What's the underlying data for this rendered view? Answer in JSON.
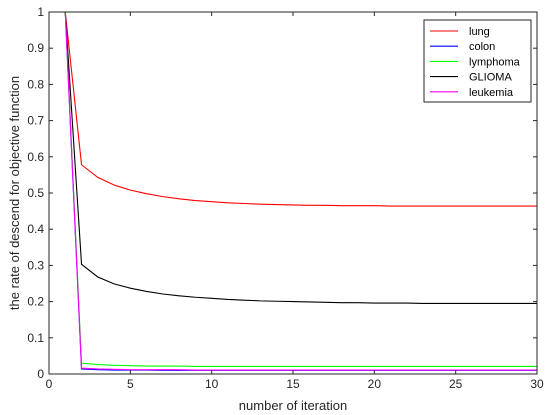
{
  "chart_data": {
    "type": "line",
    "xlabel": "number of iteration",
    "ylabel": "the rate of descend for objective function",
    "xlim": [
      0,
      30
    ],
    "ylim": [
      0,
      1
    ],
    "xticks": [
      0,
      5,
      10,
      15,
      20,
      25,
      30
    ],
    "xtick_labels": [
      "0",
      "5",
      "10",
      "15",
      "20",
      "25",
      "30"
    ],
    "yticks": [
      0,
      0.1,
      0.2,
      0.3,
      0.4,
      0.5,
      0.6,
      0.7,
      0.8,
      0.9,
      1
    ],
    "ytick_labels": [
      "0",
      "0.1",
      "0.2",
      "0.3",
      "0.4",
      "0.5",
      "0.6",
      "0.7",
      "0.8",
      "0.9",
      "1"
    ],
    "grid": false,
    "legend_position": "top-right",
    "x": [
      1,
      2,
      3,
      4,
      5,
      6,
      7,
      8,
      9,
      10,
      11,
      12,
      13,
      14,
      15,
      16,
      17,
      18,
      19,
      20,
      21,
      22,
      23,
      24,
      25,
      26,
      27,
      28,
      29,
      30
    ],
    "series": [
      {
        "name": "lung",
        "color": "#ff0000",
        "values": [
          1,
          0.578,
          0.543,
          0.522,
          0.508,
          0.498,
          0.49,
          0.484,
          0.479,
          0.476,
          0.473,
          0.471,
          0.469,
          0.468,
          0.467,
          0.466,
          0.466,
          0.465,
          0.465,
          0.465,
          0.464,
          0.464,
          0.464,
          0.464,
          0.464,
          0.464,
          0.464,
          0.464,
          0.464,
          0.464
        ]
      },
      {
        "name": "colon",
        "color": "#0000ff",
        "values": [
          1,
          0.014,
          0.012,
          0.011,
          0.011,
          0.011,
          0.01,
          0.01,
          0.01,
          0.01,
          0.01,
          0.01,
          0.01,
          0.01,
          0.01,
          0.01,
          0.01,
          0.01,
          0.01,
          0.01,
          0.01,
          0.01,
          0.01,
          0.01,
          0.01,
          0.01,
          0.01,
          0.01,
          0.01,
          0.01
        ]
      },
      {
        "name": "lymphoma",
        "color": "#00ff00",
        "values": [
          1,
          0.03,
          0.026,
          0.024,
          0.023,
          0.022,
          0.022,
          0.022,
          0.021,
          0.021,
          0.021,
          0.021,
          0.021,
          0.021,
          0.021,
          0.021,
          0.021,
          0.021,
          0.021,
          0.021,
          0.021,
          0.021,
          0.021,
          0.021,
          0.021,
          0.021,
          0.021,
          0.021,
          0.021,
          0.021
        ]
      },
      {
        "name": "GLIOMA",
        "color": "#000000",
        "values": [
          1,
          0.303,
          0.268,
          0.249,
          0.237,
          0.228,
          0.221,
          0.216,
          0.212,
          0.209,
          0.206,
          0.204,
          0.202,
          0.201,
          0.2,
          0.199,
          0.198,
          0.197,
          0.197,
          0.196,
          0.196,
          0.196,
          0.195,
          0.195,
          0.195,
          0.195,
          0.195,
          0.195,
          0.195,
          0.195
        ]
      },
      {
        "name": "leukemia",
        "color": "#ff00ff",
        "values": [
          1,
          0.016,
          0.014,
          0.013,
          0.012,
          0.012,
          0.012,
          0.012,
          0.011,
          0.011,
          0.011,
          0.011,
          0.011,
          0.011,
          0.011,
          0.011,
          0.011,
          0.011,
          0.011,
          0.011,
          0.011,
          0.011,
          0.011,
          0.011,
          0.011,
          0.011,
          0.011,
          0.011,
          0.011,
          0.011
        ]
      }
    ]
  }
}
